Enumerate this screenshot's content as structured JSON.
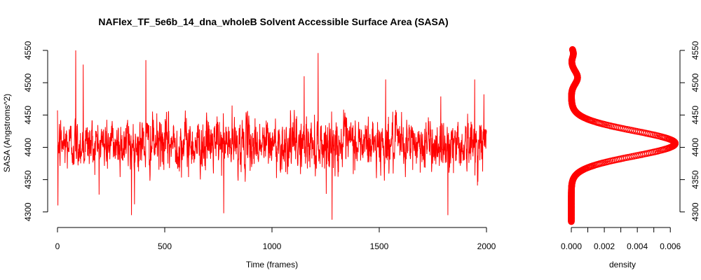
{
  "colors": {
    "series": "#ff0000",
    "axis": "#000000",
    "background": "#ffffff"
  },
  "chart_data": [
    {
      "type": "line",
      "title": "NAFlex_TF_5e6b_14_dna_wholeB Solvent Accessible Surface Area (SASA)",
      "xlabel": "Time (frames)",
      "ylabel": "SASA (Angstroms^2)",
      "xlim": [
        0,
        2000
      ],
      "ylim": [
        4290,
        4550
      ],
      "x_ticks": [
        0,
        500,
        1000,
        1500,
        2000
      ],
      "y_ticks": [
        4300,
        4350,
        4400,
        4450,
        4500,
        4550
      ],
      "series_summary": {
        "n_frames": 2000,
        "mean": 4405,
        "sd": 20,
        "min": 4288,
        "max": 4550
      },
      "spikes": [
        {
          "x": 2,
          "y": 4310
        },
        {
          "x": 85,
          "y": 4550
        },
        {
          "x": 120,
          "y": 4528
        },
        {
          "x": 345,
          "y": 4295
        },
        {
          "x": 412,
          "y": 4535
        },
        {
          "x": 775,
          "y": 4298
        },
        {
          "x": 1150,
          "y": 4510
        },
        {
          "x": 1215,
          "y": 4546
        },
        {
          "x": 1280,
          "y": 4288
        },
        {
          "x": 1530,
          "y": 4505
        },
        {
          "x": 1820,
          "y": 4295
        },
        {
          "x": 1945,
          "y": 4505
        },
        {
          "x": 1988,
          "y": 4482
        }
      ]
    },
    {
      "type": "scatter",
      "xlabel": "density",
      "ylabel": "",
      "xlim": [
        0,
        0.0065
      ],
      "ylim": [
        4290,
        4550
      ],
      "x_ticks": [
        "0.000",
        "0.002",
        "0.004",
        "0.006"
      ],
      "y_ticks": [
        4300,
        4350,
        4400,
        4450,
        4500,
        4550
      ],
      "density_curve": {
        "y_range": [
          4285,
          4552
        ],
        "mean": 4406,
        "sd": 19.5,
        "peak": 0.0063,
        "tail_bumps": [
          {
            "center": 4508,
            "width": 10,
            "weight": 0.06
          },
          {
            "center": 4545,
            "width": 6,
            "weight": 0.02
          }
        ]
      }
    }
  ]
}
